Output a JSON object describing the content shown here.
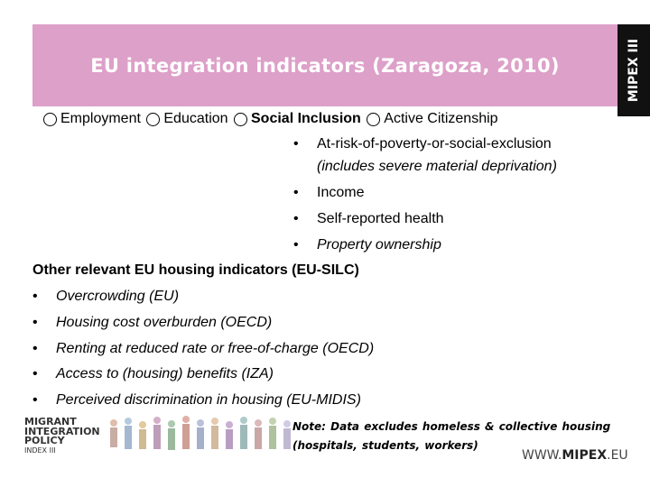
{
  "header": {
    "title": "EU integration indicators (Zaragoza, 2010)",
    "side_tab": "MIPEX III"
  },
  "strands": [
    {
      "label": "Employment"
    },
    {
      "label": "Education"
    },
    {
      "label": "Social Inclusion"
    },
    {
      "label": "Active Citizenship"
    }
  ],
  "social_inclusion_items": {
    "item1_line1": "At-risk-of-poverty-or-social-exclusion",
    "item1_line2": "(includes severe material deprivation)",
    "item2": "Income",
    "item3": "Self-reported health",
    "item4": "Property ownership"
  },
  "other": {
    "heading": "Other relevant EU housing indicators (EU-SILC)",
    "items": [
      "Overcrowding (EU)",
      "Housing cost overburden (OECD)",
      "Renting at reduced rate or free-of-charge (OECD)",
      "Access to (housing) benefits (IZA)",
      "Perceived discrimination in housing (EU-MIDIS)"
    ]
  },
  "bullet_char": "•",
  "note": {
    "line1": "Note: Data excludes homeless & collective housing",
    "line2": "(hospitals, students, workers)"
  },
  "logo": {
    "line1": "MIGRANT",
    "line2": "INTEGRATION",
    "line3": "POLICY",
    "line4": "INDEX III"
  },
  "footer_url": {
    "prefix": "WWW.",
    "brand": "MIPEX",
    "suffix": ".EU"
  },
  "colors": {
    "header_bg": "#dda0c8",
    "tab_bg": "#111111"
  }
}
